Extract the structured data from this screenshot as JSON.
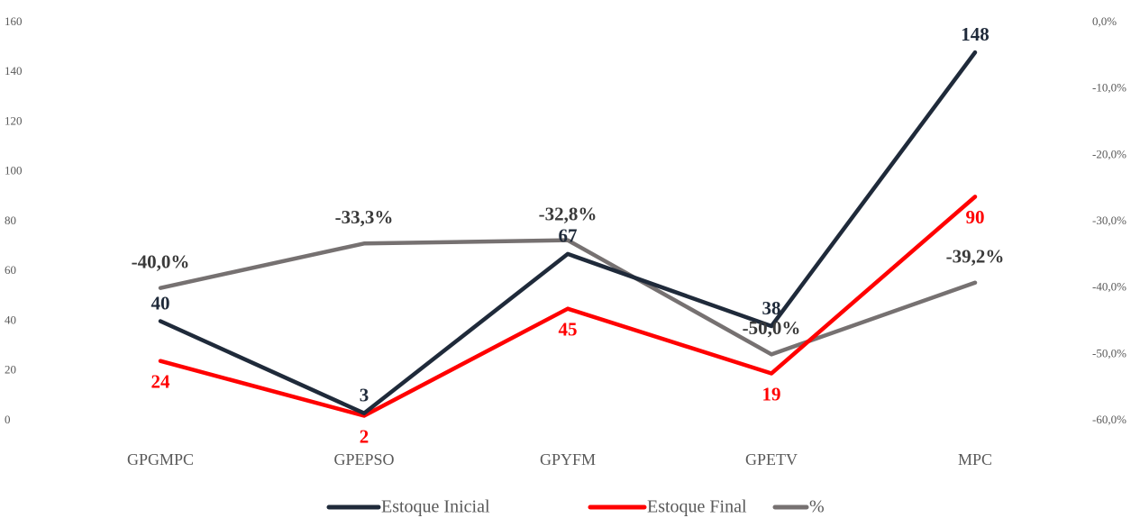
{
  "chart_data": {
    "type": "line",
    "categories": [
      "GPGMPC",
      "GPEPSO",
      "GPYFM",
      "GPETV",
      "MPC"
    ],
    "series": [
      {
        "name": "Estoque Inicial",
        "color": "#1f2a3a",
        "values": [
          40,
          3,
          67,
          38,
          148
        ]
      },
      {
        "name": "Estoque Final",
        "color": "#ff0000",
        "values": [
          24,
          2,
          45,
          19,
          90
        ]
      },
      {
        "name": "%",
        "color": "#767171",
        "axis": "y2",
        "values": [
          -40.0,
          -33.3,
          -32.8,
          -50.0,
          -39.2
        ],
        "value_labels": [
          "-40,0%",
          "-33,3%",
          "-32,8%",
          "-50,0%",
          "-39,2%"
        ]
      }
    ],
    "ylim": [
      0,
      160
    ],
    "yticks": [
      0,
      20,
      40,
      60,
      80,
      100,
      120,
      140,
      160
    ],
    "y2lim": [
      -60,
      0
    ],
    "y2ticks": [
      {
        "value": 0,
        "label": "0,0%"
      },
      {
        "value": -10,
        "label": "-10,0%"
      },
      {
        "value": -20,
        "label": "-20,0%"
      },
      {
        "value": -30,
        "label": "-30,0%"
      },
      {
        "value": -40,
        "label": "-40,0%"
      },
      {
        "value": -50,
        "label": "-50,0%"
      },
      {
        "value": -60,
        "label": "-60,0%"
      }
    ],
    "legend": "bottom"
  }
}
